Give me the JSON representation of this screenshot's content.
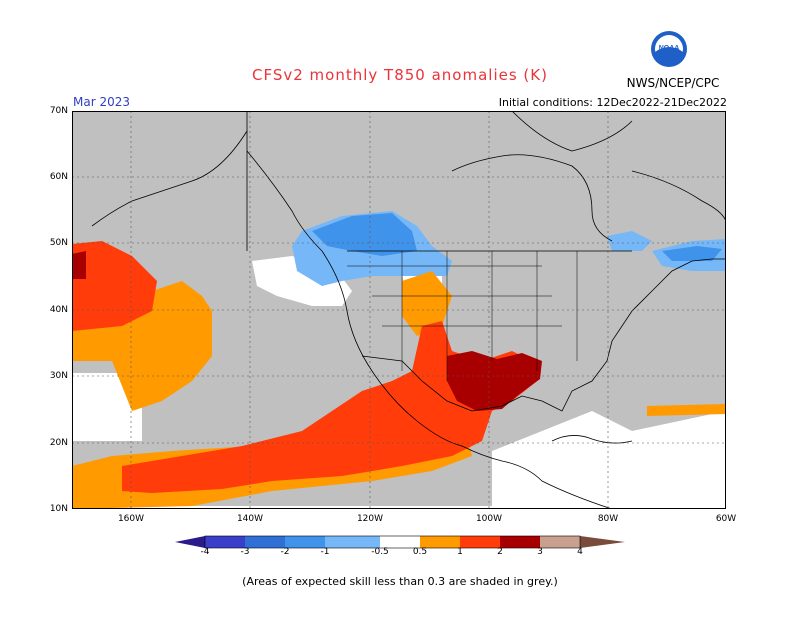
{
  "header": {
    "title": "CFSv2 monthly T850 anomalies (K)",
    "month": "Mar 2023",
    "initial_conditions": "Initial conditions: 12Dec2022-21Dec2022",
    "agency": "NWS/NCEP/CPC",
    "logo_label": "NOAA"
  },
  "axes": {
    "lat_labels": [
      "70N",
      "60N",
      "50N",
      "40N",
      "30N",
      "20N",
      "10N"
    ],
    "lon_labels": [
      "160W",
      "140W",
      "120W",
      "100W",
      "80W",
      "60W"
    ]
  },
  "legend": {
    "labels": [
      "-4",
      "-3",
      "-2",
      "-1",
      "-0.5",
      "0.5",
      "1",
      "2",
      "3",
      "4"
    ],
    "colors": [
      "#2b1a8a",
      "#3a3ec8",
      "#2f6fd6",
      "#3f93ea",
      "#76b8f7",
      "#ffffff",
      "#ff9a00",
      "#ff3c0a",
      "#a80000",
      "#c8a090",
      "#7a4a3a"
    ]
  },
  "map_colors": {
    "skill_mask": "#c0c0c0",
    "background": "#ffffff",
    "border": "#000000"
  },
  "footnote": "(Areas of expected skill less than 0.3 are shaded in grey.)"
}
